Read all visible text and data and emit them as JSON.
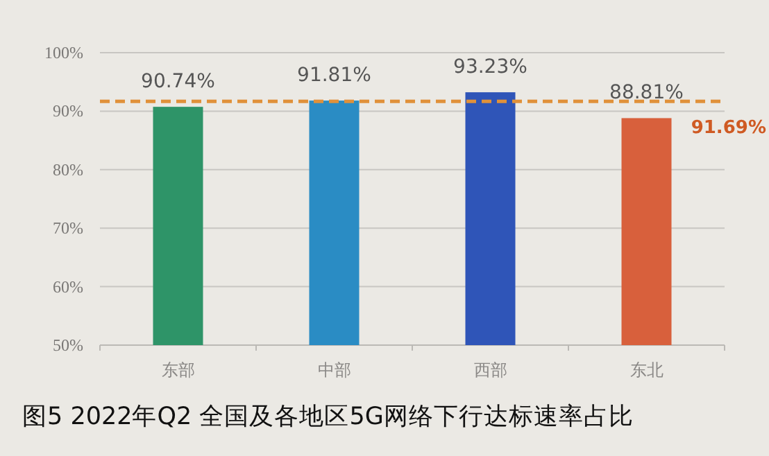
{
  "chart_data": {
    "type": "bar",
    "title": "图5 2022年Q2 全国及各地区5G网络下行达标速率占比",
    "categories": [
      "东部",
      "中部",
      "西部",
      "东北"
    ],
    "values": [
      90.74,
      91.81,
      93.23,
      88.81
    ],
    "colors": [
      "#2e9468",
      "#2a8cc4",
      "#2f55b8",
      "#d8603c"
    ],
    "value_labels": [
      "90.74%",
      "91.81%",
      "93.23%",
      "88.81%"
    ],
    "ylim": [
      50,
      100
    ],
    "yticks": [
      {
        "value": 50,
        "label": "50%"
      },
      {
        "value": 60,
        "label": "60%"
      },
      {
        "value": 70,
        "label": "70%"
      },
      {
        "value": 80,
        "label": "80%"
      },
      {
        "value": 90,
        "label": "90%"
      },
      {
        "value": 100,
        "label": "100%"
      }
    ],
    "grid": "y",
    "ref_lines": [
      {
        "axis": "y",
        "value": 91.69,
        "label": "91.69%",
        "color": "#e0913a",
        "line_style": "dashed"
      }
    ]
  }
}
